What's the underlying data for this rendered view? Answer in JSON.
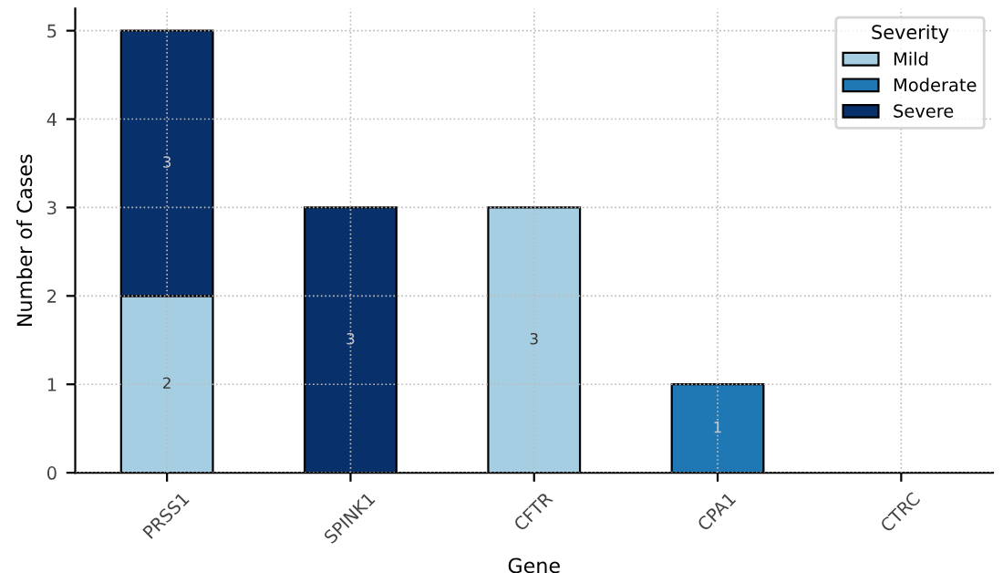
{
  "chart_data": {
    "type": "bar",
    "stacked": true,
    "xlabel": "Gene",
    "ylabel": "Number of Cases",
    "legend_title": "Severity",
    "legend": "top right",
    "grid": true,
    "categories": [
      "PRSS1",
      "SPINK1",
      "CFTR",
      "CPA1",
      "CTRC"
    ],
    "series": [
      {
        "name": "Mild",
        "color": "#a6cee3",
        "values": [
          2,
          null,
          3,
          null,
          null
        ],
        "value_labels": [
          "2",
          null,
          "3",
          null,
          null
        ]
      },
      {
        "name": "Moderate",
        "color": "#1f78b4",
        "values": [
          null,
          null,
          null,
          1,
          null
        ],
        "value_labels": [
          null,
          null,
          null,
          "1",
          null
        ]
      },
      {
        "name": "Severe",
        "color": "#08306b",
        "values": [
          3,
          3,
          null,
          null,
          null
        ],
        "value_labels": [
          "3",
          "3",
          null,
          null,
          null
        ]
      }
    ],
    "ylim": [
      0,
      5.25
    ],
    "yticks": [
      0,
      1,
      2,
      3,
      4,
      5
    ]
  }
}
